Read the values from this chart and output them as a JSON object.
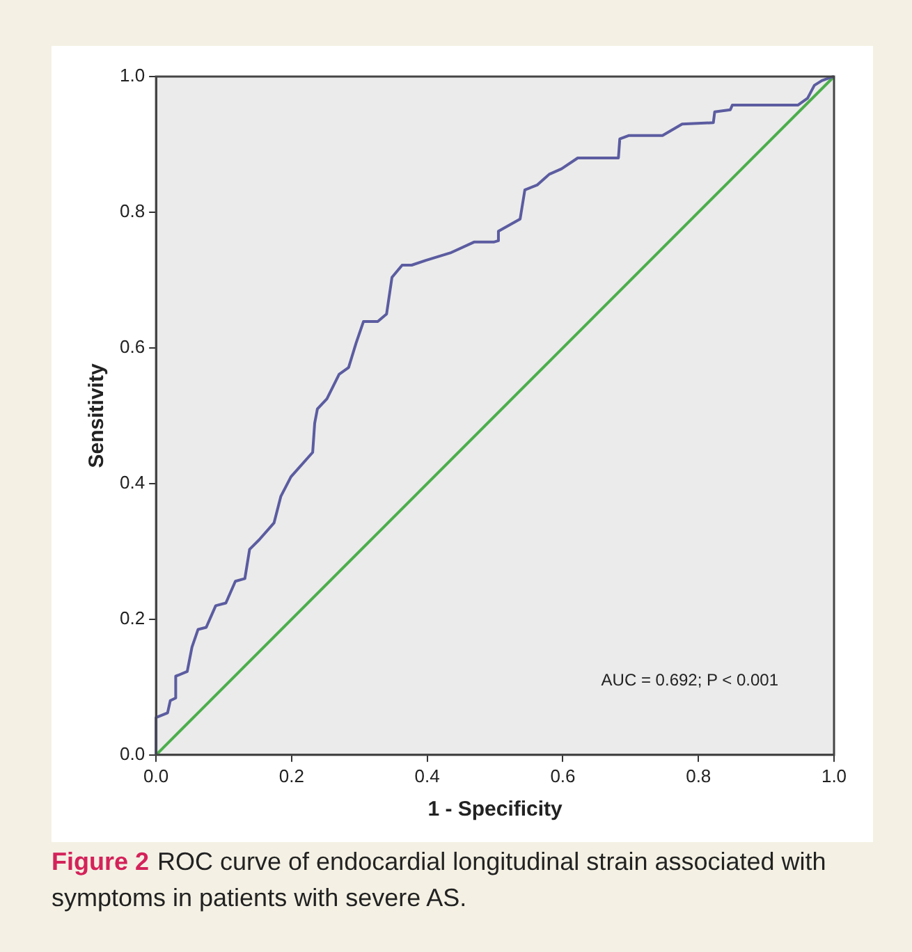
{
  "chart_data": {
    "type": "line",
    "xlabel": "1 - Specificity",
    "ylabel": "Sensitivity",
    "xlim": [
      0,
      1
    ],
    "ylim": [
      0,
      1
    ],
    "xticks": [
      {
        "value": 0,
        "label": "0.0"
      },
      {
        "value": 0.2,
        "label": "0.2"
      },
      {
        "value": 0.4,
        "label": "0.4"
      },
      {
        "value": 0.6,
        "label": "0.6"
      },
      {
        "value": 0.8,
        "label": "0.8"
      },
      {
        "value": 1,
        "label": "1.0"
      }
    ],
    "yticks": [
      {
        "value": 0,
        "label": "0.0"
      },
      {
        "value": 0.2,
        "label": "0.2"
      },
      {
        "value": 0.4,
        "label": "0.4"
      },
      {
        "value": 0.6,
        "label": "0.6"
      },
      {
        "value": 0.8,
        "label": "0.8"
      },
      {
        "value": 1,
        "label": "1.0"
      }
    ],
    "grid": false,
    "legend": false,
    "marker": "none",
    "line_style": "solid",
    "series": [
      {
        "color": "#5b5ca0",
        "x": [
          0,
          0,
          0.017,
          0.021,
          0.029,
          0.029,
          0.046,
          0.053,
          0.062,
          0.074,
          0.088,
          0.103,
          0.117,
          0.131,
          0.138,
          0.152,
          0.174,
          0.184,
          0.199,
          0.231,
          0.234,
          0.238,
          0.252,
          0.27,
          0.284,
          0.295,
          0.306,
          0.327,
          0.34,
          0.348,
          0.363,
          0.377,
          0.398,
          0.434,
          0.469,
          0.498,
          0.505,
          0.505,
          0.537,
          0.544,
          0.562,
          0.58,
          0.598,
          0.622,
          0.682,
          0.684,
          0.697,
          0.747,
          0.776,
          0.822,
          0.824,
          0.847,
          0.85,
          0.947,
          0.961,
          0.971,
          0.982,
          0.996,
          1
        ],
        "values": [
          0,
          0.055,
          0.062,
          0.08,
          0.084,
          0.116,
          0.123,
          0.159,
          0.185,
          0.188,
          0.22,
          0.224,
          0.256,
          0.26,
          0.303,
          0.317,
          0.342,
          0.381,
          0.41,
          0.446,
          0.489,
          0.51,
          0.525,
          0.561,
          0.571,
          0.607,
          0.639,
          0.639,
          0.65,
          0.704,
          0.722,
          0.722,
          0.729,
          0.74,
          0.756,
          0.756,
          0.758,
          0.772,
          0.79,
          0.833,
          0.84,
          0.856,
          0.864,
          0.88,
          0.88,
          0.908,
          0.913,
          0.913,
          0.93,
          0.932,
          0.948,
          0.951,
          0.958,
          0.958,
          0.968,
          0.987,
          0.994,
          0.999,
          1
        ]
      },
      {
        "color": "#4cae4c",
        "x": [
          0,
          1
        ],
        "values": [
          0,
          1
        ]
      }
    ],
    "annotations": [
      "AUC = 0.692; P < 0.001",
      "Figure 2",
      "ROC curve of endocardial longitudinal strain associated with symptoms in patients with severe AS."
    ]
  }
}
